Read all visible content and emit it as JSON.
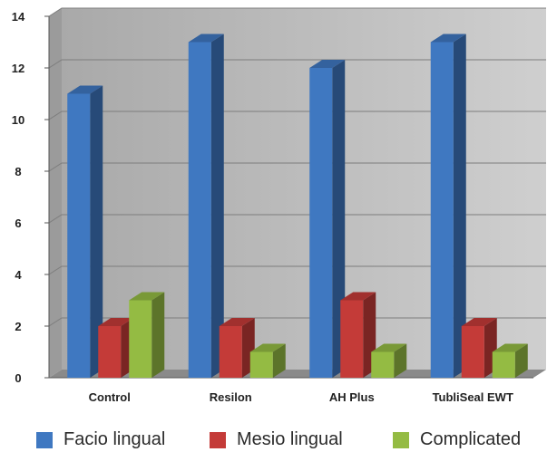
{
  "chart_data": {
    "type": "bar",
    "categories": [
      "Control",
      "Resilon",
      "AH Plus",
      "TubliSeal EWT"
    ],
    "series": [
      {
        "name": "Facio lingual",
        "values": [
          11,
          13,
          12,
          13
        ],
        "color": "#3f78c1"
      },
      {
        "name": "Mesio lingual",
        "values": [
          2,
          2,
          3,
          2
        ],
        "color": "#c43b38"
      },
      {
        "name": "Complicated",
        "values": [
          3,
          1,
          1,
          1
        ],
        "color": "#94bb43"
      }
    ],
    "title": "",
    "xlabel": "",
    "ylabel": "",
    "ylim": [
      0,
      14
    ],
    "yticks": [
      "0",
      "2",
      "4",
      "6",
      "8",
      "10",
      "12",
      "14"
    ],
    "grid": true,
    "legend_position": "bottom",
    "background_color": "#c0c0c0"
  }
}
